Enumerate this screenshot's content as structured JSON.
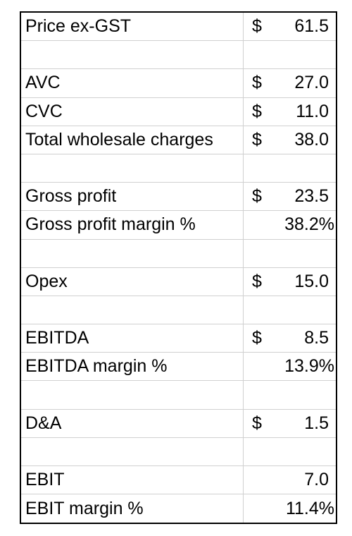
{
  "table": {
    "rows": [
      {
        "label": "Price ex-GST",
        "currency": "$",
        "value": "61.5"
      },
      {
        "label": "",
        "currency": "",
        "value": ""
      },
      {
        "label": "AVC",
        "currency": "$",
        "value": "27.0"
      },
      {
        "label": "CVC",
        "currency": "$",
        "value": "11.0"
      },
      {
        "label": "Total wholesale charges",
        "currency": "$",
        "value": "38.0"
      },
      {
        "label": "",
        "currency": "",
        "value": ""
      },
      {
        "label": "Gross profit",
        "currency": "$",
        "value": "23.5"
      },
      {
        "label": "Gross profit margin %",
        "currency": "",
        "value": "38.2%"
      },
      {
        "label": "",
        "currency": "",
        "value": ""
      },
      {
        "label": "Opex",
        "currency": "$",
        "value": "15.0"
      },
      {
        "label": "",
        "currency": "",
        "value": ""
      },
      {
        "label": "EBITDA",
        "currency": "$",
        "value": "8.5"
      },
      {
        "label": "EBITDA margin %",
        "currency": "",
        "value": "13.9%"
      },
      {
        "label": "",
        "currency": "",
        "value": ""
      },
      {
        "label": "D&A",
        "currency": "$",
        "value": "1.5"
      },
      {
        "label": "",
        "currency": "",
        "value": ""
      },
      {
        "label": "EBIT",
        "currency": "",
        "value": "7.0"
      },
      {
        "label": "EBIT margin %",
        "currency": "",
        "value": "11.4%"
      }
    ]
  }
}
